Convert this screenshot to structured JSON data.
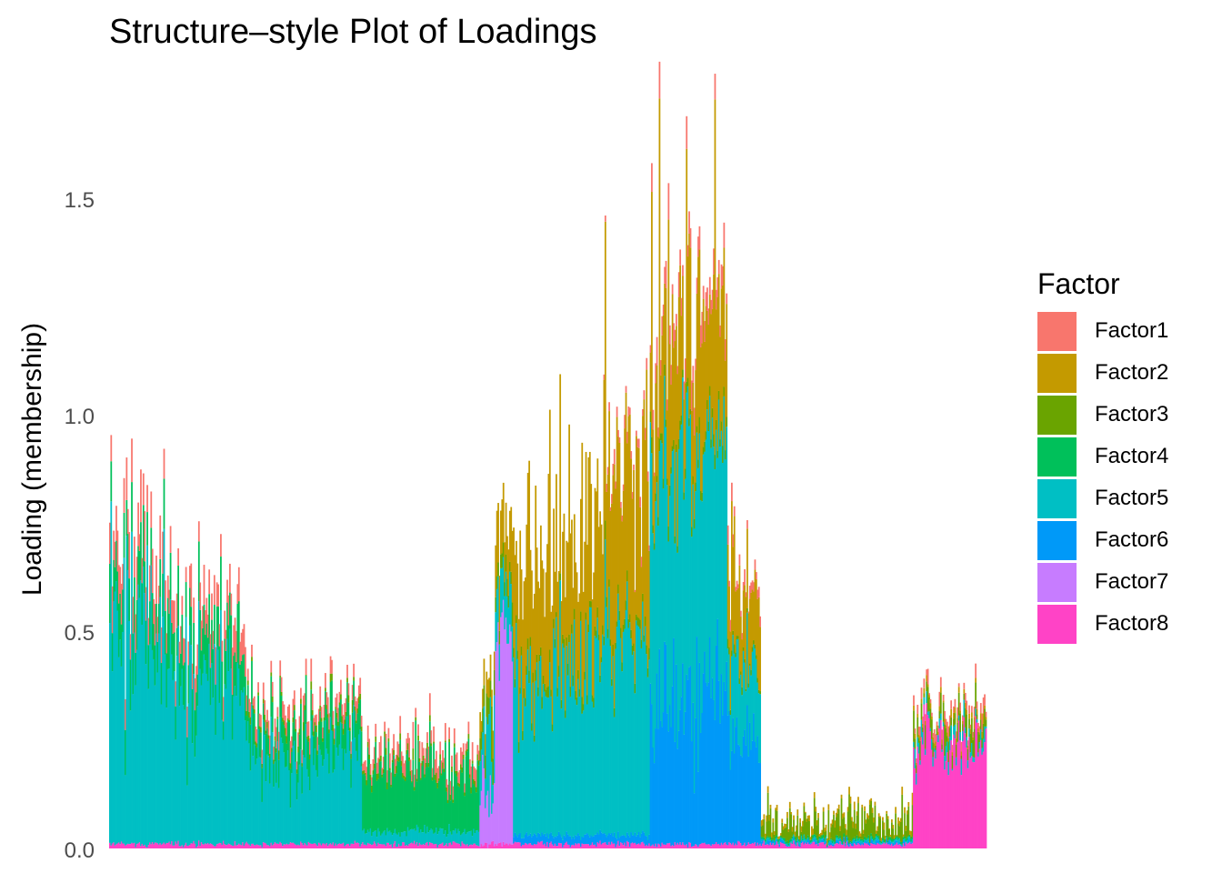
{
  "chart_data": {
    "type": "bar",
    "title": "Structure–style Plot of Loadings",
    "xlabel": "",
    "ylabel": "Loading (membership)",
    "ylim": [
      0,
      1.72
    ],
    "y_ticks": [
      "0.0",
      "0.5",
      "1.0",
      "1.5"
    ],
    "stacked": true,
    "grid": false,
    "legend": {
      "title": "Factor",
      "position": "right"
    },
    "colors": {
      "Factor1": "#F8766D",
      "Factor2": "#C49A00",
      "Factor3": "#6AA400",
      "Factor4": "#00C05A",
      "Factor5": "#00BFC4",
      "Factor6": "#0099F8",
      "Factor7": "#C77CFF",
      "Factor8": "#FF43C6"
    },
    "series": [
      {
        "name": "Factor1"
      },
      {
        "name": "Factor2"
      },
      {
        "name": "Factor3"
      },
      {
        "name": "Factor4"
      },
      {
        "name": "Factor5"
      },
      {
        "name": "Factor6"
      },
      {
        "name": "Factor7"
      },
      {
        "name": "Factor8"
      }
    ],
    "sample_groups": [
      {
        "n": 44,
        "Factor1": [
          0.08,
          0.06
        ],
        "Factor4": [
          0.1,
          0.06
        ],
        "Factor5": [
          0.5,
          0.44
        ],
        "Factor8": [
          0.01,
          0.01
        ]
      },
      {
        "n": 62,
        "Factor1": [
          0.06,
          0.03
        ],
        "Factor4": [
          0.1,
          0.07
        ],
        "Factor5": [
          0.38,
          0.27
        ],
        "Factor8": [
          0.01,
          0.01
        ]
      },
      {
        "n": 90,
        "Factor1": [
          0.03,
          0.02
        ],
        "Factor4": [
          0.07,
          0.06
        ],
        "Factor3": [
          0.01,
          0.01
        ],
        "Factor5": [
          0.2,
          0.15
        ],
        "Factor8": [
          0.01,
          0.01
        ]
      },
      {
        "n": 91,
        "Factor1": [
          0.03,
          0.02
        ],
        "Factor4": [
          0.15,
          0.12
        ],
        "Factor3": [
          0.01,
          0.01
        ],
        "Factor5": [
          0.03,
          0.02
        ],
        "Factor8": [
          0.01,
          0.01
        ]
      },
      {
        "n": 12,
        "Factor2": [
          0.05,
          0.04
        ],
        "Factor3": [
          0.06,
          0.05
        ],
        "Factor5": [
          0.15,
          0.2
        ],
        "Factor7": [
          0.12,
          0.14
        ],
        "Factor8": [
          0.01,
          0.01
        ]
      },
      {
        "n": 14,
        "Factor2": [
          0.12,
          0.05
        ],
        "Factor3": [
          0.03,
          0.02
        ],
        "Factor5": [
          0.1,
          0.06
        ],
        "Factor7": [
          0.5,
          0.15
        ],
        "Factor8": [
          0.01,
          0.01
        ]
      },
      {
        "n": 35,
        "Factor2": [
          0.25,
          0.2
        ],
        "Factor3": [
          0.02,
          0.01
        ],
        "Factor5": [
          0.35,
          0.25
        ],
        "Factor6": [
          0.02,
          0.01
        ],
        "Factor8": [
          0.01,
          0.01
        ]
      },
      {
        "n": 35,
        "Factor2": [
          0.3,
          0.25
        ],
        "Factor3": [
          0.02,
          0.01
        ],
        "Factor5": [
          0.4,
          0.25
        ],
        "Factor6": [
          0.02,
          0.01
        ],
        "Factor8": [
          0.01,
          0.01
        ]
      },
      {
        "n": 36,
        "Factor1": [
          0.02,
          0.02
        ],
        "Factor2": [
          0.4,
          0.3
        ],
        "Factor3": [
          0.02,
          0.01
        ],
        "Factor5": [
          0.45,
          0.25
        ],
        "Factor6": [
          0.02,
          0.01
        ],
        "Factor8": [
          0.01,
          0.01
        ]
      },
      {
        "n": 60,
        "Factor1": [
          0.04,
          0.04
        ],
        "Factor2": [
          0.3,
          0.3
        ],
        "Factor3": [
          0.02,
          0.01
        ],
        "Factor5": [
          0.55,
          0.25
        ],
        "Factor6": [
          0.35,
          0.25
        ],
        "Factor8": [
          0.01,
          0.01
        ]
      },
      {
        "n": 26,
        "Factor1": [
          0.02,
          0.02
        ],
        "Factor2": [
          0.15,
          0.1
        ],
        "Factor3": [
          0.01,
          0.01
        ],
        "Factor5": [
          0.17,
          0.1
        ],
        "Factor6": [
          0.25,
          0.15
        ],
        "Factor8": [
          0.01,
          0.01
        ]
      },
      {
        "n": 118,
        "Factor2": [
          0.01,
          0.01
        ],
        "Factor3": [
          0.03,
          0.09
        ],
        "Factor4": [
          0.005,
          0.005
        ],
        "Factor5": [
          0.005,
          0.01
        ],
        "Factor6": [
          0.005,
          0.01
        ],
        "Factor8": [
          0.01,
          0.01
        ]
      },
      {
        "n": 57,
        "Factor1": [
          0.02,
          0.02
        ],
        "Factor2": [
          0.01,
          0.01
        ],
        "Factor3": [
          0.03,
          0.05
        ],
        "Factor5": [
          0.02,
          0.03
        ],
        "Factor8": [
          0.24,
          0.12
        ]
      }
    ]
  }
}
